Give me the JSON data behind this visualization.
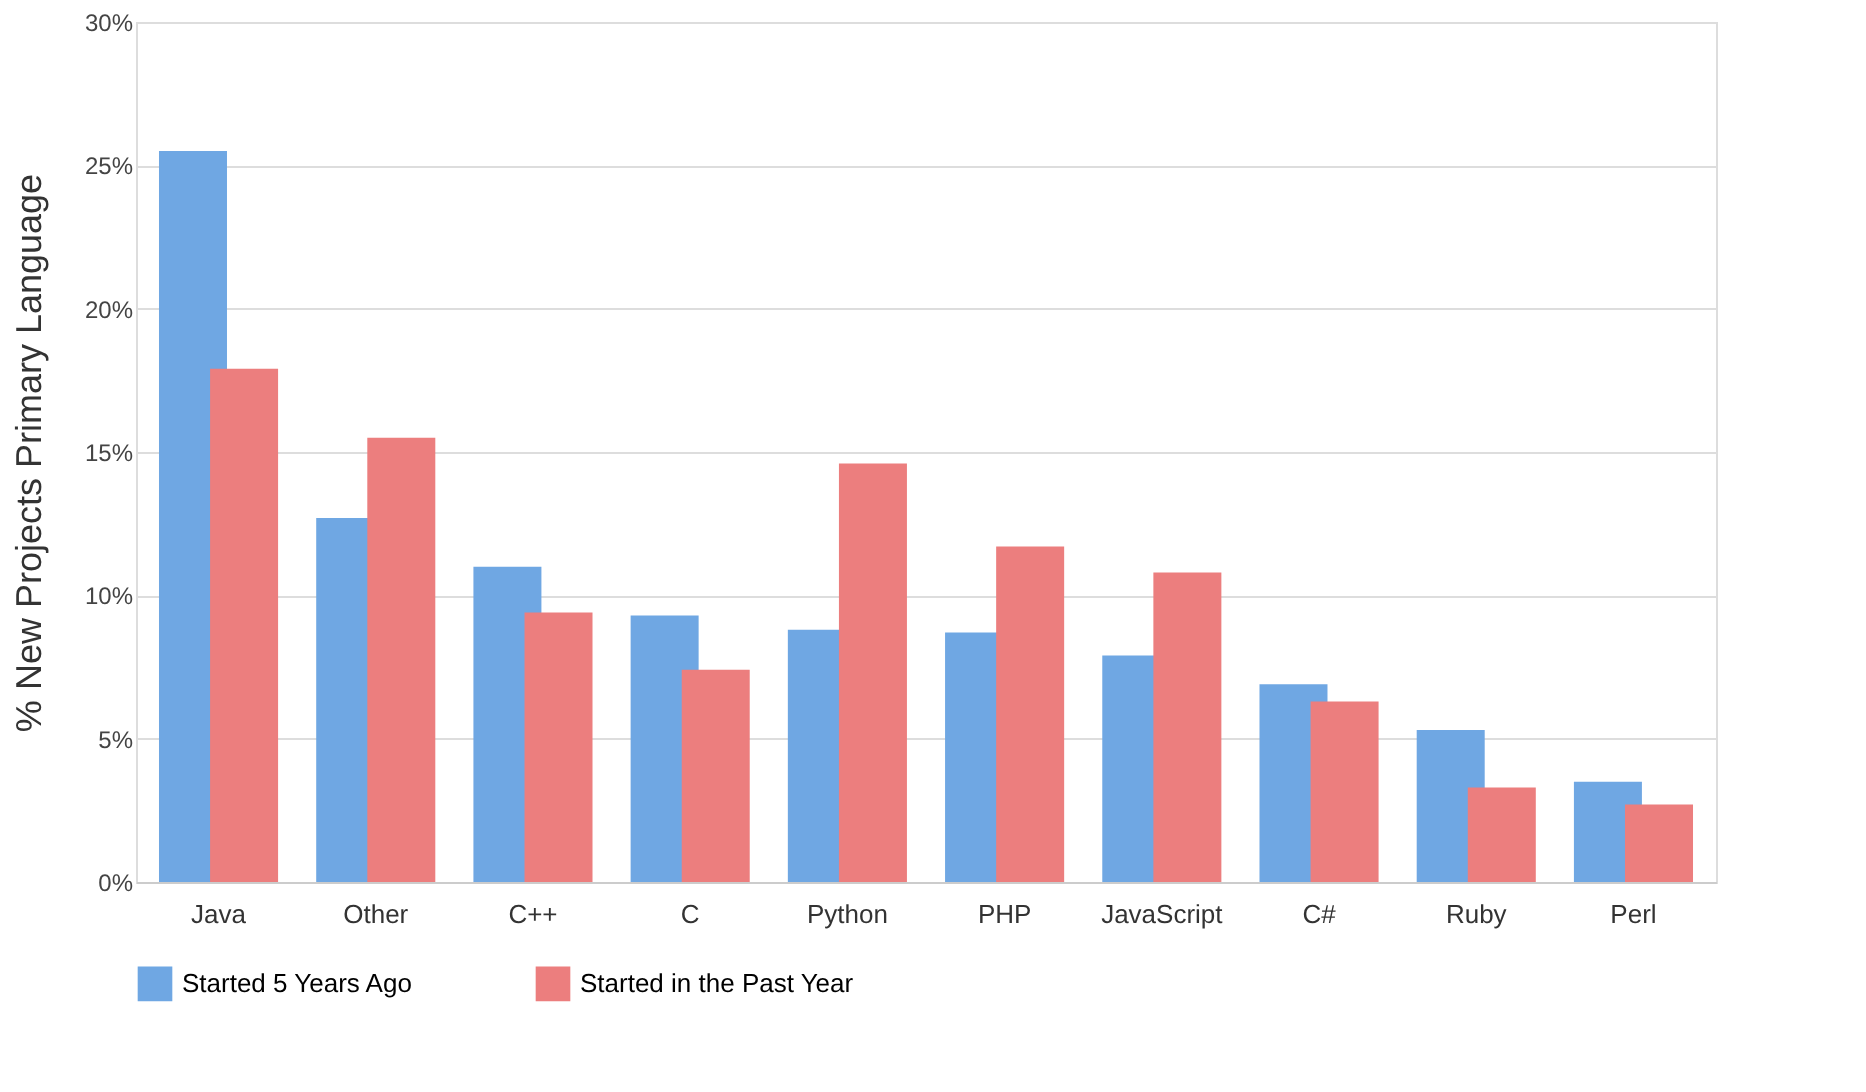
{
  "chart_data": {
    "type": "bar",
    "ylabel": "% New Projects Primary Language",
    "categories": [
      "Java",
      "Other",
      "C++",
      "C",
      "Python",
      "PHP",
      "JavaScript",
      "C#",
      "Ruby",
      "Perl"
    ],
    "series": [
      {
        "name": "Started 5 Years Ago",
        "color": "#6fa7e3",
        "values": [
          25.5,
          12.7,
          11.0,
          9.3,
          8.8,
          8.7,
          7.9,
          6.9,
          5.3,
          3.5
        ]
      },
      {
        "name": "Started in the Past Year",
        "color": "#ec7e7e",
        "values": [
          17.9,
          15.5,
          9.4,
          7.4,
          14.6,
          11.7,
          10.8,
          6.3,
          3.3,
          2.7
        ]
      }
    ],
    "ylim": [
      0,
      30
    ],
    "yticks": [
      {
        "value": 0,
        "label": "0%"
      },
      {
        "value": 5,
        "label": "5%"
      },
      {
        "value": 10,
        "label": "10%"
      },
      {
        "value": 15,
        "label": "15%"
      },
      {
        "value": 20,
        "label": "20%"
      },
      {
        "value": 25,
        "label": "25%"
      },
      {
        "value": 30,
        "label": "30%"
      }
    ],
    "grid": "y",
    "legend": "bottom"
  }
}
